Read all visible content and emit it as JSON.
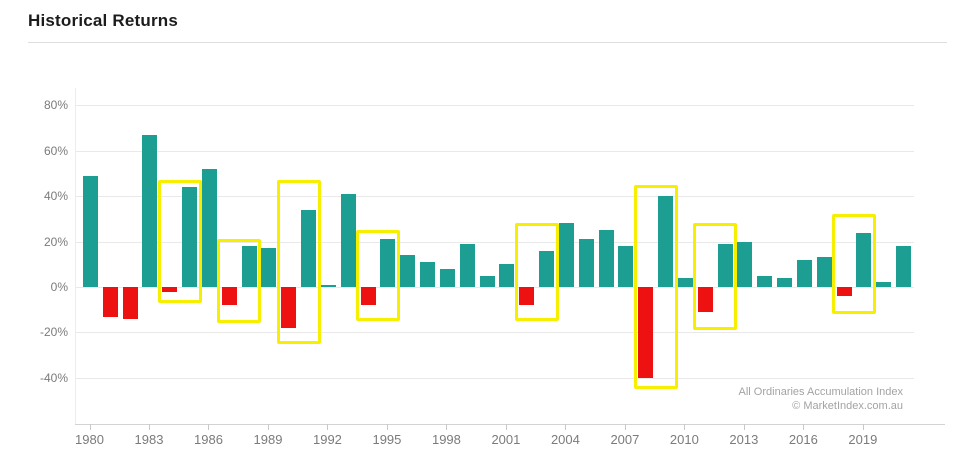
{
  "header": {
    "title": "Historical Returns"
  },
  "chart_data": {
    "type": "bar",
    "title": "Historical Returns",
    "x": [
      1980,
      1981,
      1982,
      1983,
      1984,
      1985,
      1986,
      1987,
      1988,
      1989,
      1990,
      1991,
      1992,
      1993,
      1994,
      1995,
      1996,
      1997,
      1998,
      1999,
      2000,
      2001,
      2002,
      2003,
      2004,
      2005,
      2006,
      2007,
      2008,
      2009,
      2010,
      2011,
      2012,
      2013,
      2014,
      2015,
      2016,
      2017,
      2018,
      2019,
      2020,
      2021
    ],
    "values": [
      49,
      -13,
      -14,
      67,
      -2,
      44,
      52,
      -8,
      18,
      17,
      -18,
      34,
      1,
      41,
      -8,
      21,
      14,
      11,
      8,
      19,
      5,
      10,
      -8,
      16,
      28,
      21,
      25,
      18,
      -40,
      40,
      4,
      -11,
      19,
      20,
      5,
      4,
      12,
      13,
      -4,
      24,
      2,
      18
    ],
    "xlabel": "",
    "ylabel": "",
    "ylim": [
      -60,
      88
    ],
    "grid": true,
    "legend": "none",
    "y_ticks": [
      80,
      60,
      40,
      20,
      0,
      -20,
      -40
    ],
    "y_tick_suffix": "%",
    "x_tick_years": [
      1980,
      1983,
      1986,
      1989,
      1992,
      1995,
      1998,
      2001,
      2004,
      2007,
      2010,
      2013,
      2016,
      2019
    ],
    "positive_color": "#1c9e93",
    "negative_color": "#ee1111",
    "highlight_color": "#f6ef00",
    "highlights": [
      {
        "from": 1984,
        "to": 1985,
        "top": 47,
        "bottom": -7
      },
      {
        "from": 1987,
        "to": 1988,
        "top": 21,
        "bottom": -16
      },
      {
        "from": 1990,
        "to": 1991,
        "top": 47,
        "bottom": -25
      },
      {
        "from": 1994,
        "to": 1995,
        "top": 25,
        "bottom": -15
      },
      {
        "from": 2002,
        "to": 2003,
        "top": 28,
        "bottom": -15
      },
      {
        "from": 2008,
        "to": 2009,
        "top": 45,
        "bottom": -45
      },
      {
        "from": 2011,
        "to": 2012,
        "top": 28,
        "bottom": -19
      },
      {
        "from": 2018,
        "to": 2019,
        "top": 32,
        "bottom": -12
      }
    ],
    "annotations": [
      "All Ordinaries Accumulation Index",
      "© MarketIndex.com.au"
    ]
  }
}
